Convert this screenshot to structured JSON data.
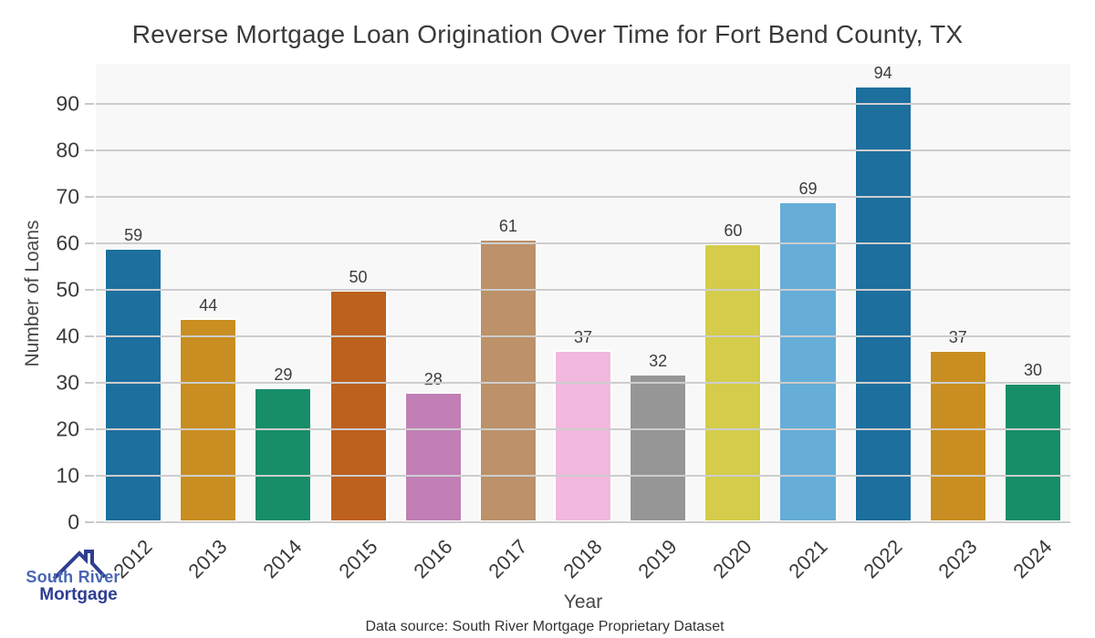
{
  "title": "Reverse Mortgage Loan Origination Over Time for Fort Bend County, TX",
  "x_axis_label": "Year",
  "y_axis_label": "Number of Loans",
  "footer": {
    "data_source": "Data source: South River Mortgage Proprietary Dataset"
  },
  "logo": {
    "line1": "South River",
    "line2": "Mortgage",
    "icon": "house-roofline-icon",
    "color_primary": "#2e3e92",
    "color_secondary": "#4a67b4"
  },
  "chart_data": {
    "type": "bar",
    "title": "Reverse Mortgage Loan Origination Over Time for Fort Bend County, TX",
    "xlabel": "Year",
    "ylabel": "Number of Loans",
    "categories": [
      "2012",
      "2013",
      "2014",
      "2015",
      "2016",
      "2017",
      "2018",
      "2019",
      "2020",
      "2021",
      "2022",
      "2023",
      "2024"
    ],
    "values": [
      59,
      44,
      29,
      50,
      28,
      61,
      37,
      32,
      60,
      69,
      94,
      37,
      30
    ],
    "bar_colors": [
      "#1d6f9e",
      "#c98e22",
      "#178d69",
      "#bc611e",
      "#c17fb5",
      "#bd9169",
      "#f2b8de",
      "#969696",
      "#d4cc4a",
      "#66add8",
      "#1d6f9e",
      "#c98e22",
      "#178d69"
    ],
    "ylim": [
      0,
      98.7
    ],
    "yticks": [
      0,
      10,
      20,
      30,
      40,
      50,
      60,
      70,
      80,
      90
    ],
    "grid": true,
    "legend": false,
    "plot_background": "#f8f8f8",
    "grid_color": "#cdcdcd",
    "bar_edge_color": "#ffffff",
    "value_labels_shown": true,
    "x_tick_rotation_deg": 45
  }
}
